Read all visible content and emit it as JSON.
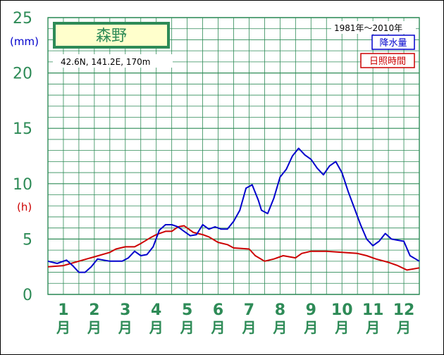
{
  "chart_data": {
    "type": "line",
    "title": "森野",
    "location": "42.6N,  141.2E,  170m",
    "period": "1981年〜2010年",
    "unit_precip": "(mm)",
    "unit_sun": "(h)",
    "y_ticks": [
      "0",
      "5",
      "10",
      "15",
      "20",
      "25"
    ],
    "ylim": [
      0,
      25
    ],
    "grid": true,
    "legend_position": "top-right",
    "months": [
      {
        "num": "1",
        "suffix": "月"
      },
      {
        "num": "2",
        "suffix": "月"
      },
      {
        "num": "3",
        "suffix": "月"
      },
      {
        "num": "4",
        "suffix": "月"
      },
      {
        "num": "5",
        "suffix": "月"
      },
      {
        "num": "6",
        "suffix": "月"
      },
      {
        "num": "7",
        "suffix": "月"
      },
      {
        "num": "8",
        "suffix": "月"
      },
      {
        "num": "9",
        "suffix": "月"
      },
      {
        "num": "10",
        "suffix": "月"
      },
      {
        "num": "11",
        "suffix": "月"
      },
      {
        "num": "12",
        "suffix": "月"
      }
    ],
    "x_range": [
      0,
      12
    ],
    "series": [
      {
        "name": "降水量",
        "color": "#0000cc",
        "x": [
          0,
          0.3,
          0.6,
          0.8,
          1.0,
          1.2,
          1.4,
          1.6,
          1.8,
          2.0,
          2.2,
          2.4,
          2.6,
          2.8,
          3.0,
          3.2,
          3.4,
          3.6,
          3.8,
          4.0,
          4.2,
          4.4,
          4.6,
          4.8,
          5.0,
          5.2,
          5.4,
          5.6,
          5.8,
          6.0,
          6.2,
          6.4,
          6.6,
          6.8,
          6.9,
          7.1,
          7.3,
          7.5,
          7.7,
          7.9,
          8.1,
          8.3,
          8.5,
          8.7,
          8.9,
          9.1,
          9.3,
          9.5,
          9.7,
          9.9,
          10.1,
          10.3,
          10.5,
          10.7,
          10.9,
          11.1,
          11.3,
          11.5,
          11.7,
          12.0
        ],
        "values": [
          3.0,
          2.8,
          3.1,
          2.6,
          2.0,
          2.0,
          2.5,
          3.2,
          3.1,
          3.0,
          3.0,
          3.0,
          3.3,
          3.9,
          3.5,
          3.6,
          4.3,
          5.8,
          6.3,
          6.3,
          6.1,
          5.7,
          5.3,
          5.4,
          6.3,
          5.9,
          6.1,
          5.9,
          5.9,
          6.6,
          7.6,
          9.6,
          9.9,
          8.5,
          7.6,
          7.3,
          8.7,
          10.6,
          11.3,
          12.5,
          13.2,
          12.6,
          12.2,
          11.4,
          10.8,
          11.6,
          12.0,
          11.0,
          9.3,
          7.8,
          6.3,
          5.0,
          4.4,
          4.8,
          5.5,
          5.0,
          4.9,
          4.8,
          3.5,
          3.0
        ]
      },
      {
        "name": "日照時間",
        "color": "#cc0000",
        "x": [
          0,
          0.5,
          1.0,
          1.5,
          2.0,
          2.2,
          2.5,
          2.8,
          3.0,
          3.3,
          3.5,
          3.8,
          4.0,
          4.2,
          4.4,
          4.5,
          4.7,
          5.0,
          5.2,
          5.5,
          5.8,
          6.0,
          6.5,
          6.7,
          7.0,
          7.3,
          7.6,
          8.0,
          8.2,
          8.5,
          9.0,
          9.5,
          10.0,
          10.3,
          10.6,
          11.0,
          11.3,
          11.6,
          12.0
        ],
        "values": [
          2.5,
          2.6,
          3.0,
          3.4,
          3.8,
          4.1,
          4.3,
          4.3,
          4.6,
          5.1,
          5.4,
          5.7,
          5.7,
          6.1,
          6.2,
          6.0,
          5.6,
          5.4,
          5.2,
          4.7,
          4.5,
          4.2,
          4.1,
          3.5,
          3.0,
          3.2,
          3.5,
          3.3,
          3.7,
          3.9,
          3.9,
          3.8,
          3.7,
          3.5,
          3.2,
          2.9,
          2.6,
          2.2,
          2.4
        ]
      }
    ]
  }
}
